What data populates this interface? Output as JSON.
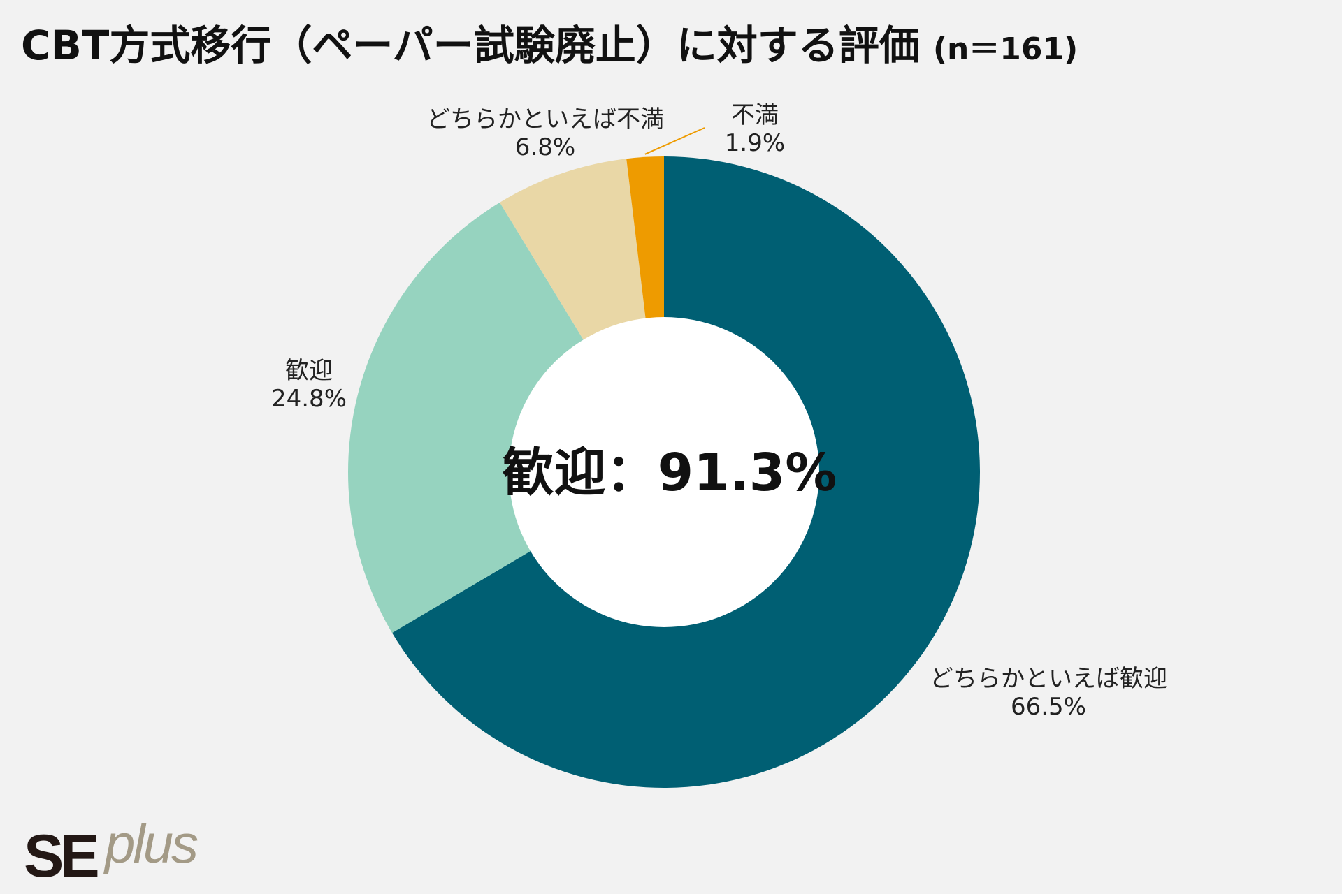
{
  "chart_data": {
    "type": "pie",
    "title": "CBT方式移行（ペーパー試験廃止）に対する評価",
    "subtitle": "(n＝161)",
    "center_label": "歓迎：91.3%",
    "slices": [
      {
        "label": "どちらかといえば歓迎",
        "value": 66.5,
        "value_label": "66.5%",
        "color": "#005f73"
      },
      {
        "label": "歓迎",
        "value": 24.8,
        "value_label": "24.8%",
        "color": "#96d3bf"
      },
      {
        "label": "どちらかといえば不満",
        "value": 6.8,
        "value_label": "6.8%",
        "color": "#e9d7a6"
      },
      {
        "label": "不満",
        "value": 1.9,
        "value_label": "1.9%",
        "color": "#ee9b00"
      }
    ],
    "legend": "none",
    "style": "donut"
  },
  "logo": {
    "se": "SE",
    "plus": "plus"
  },
  "colors": {
    "background": "#f2f2f2",
    "center_hole": "#ffffff",
    "leader_line": "#ee9b00"
  }
}
